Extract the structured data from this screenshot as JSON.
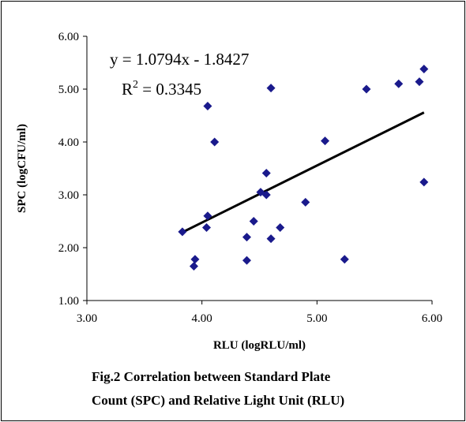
{
  "chart_data": {
    "type": "scatter",
    "xlabel": "RLU (logRLU/ml)",
    "ylabel": "SPC (logCFU/ml)",
    "xlim": [
      3.0,
      6.0
    ],
    "ylim": [
      1.0,
      6.0
    ],
    "x_ticks": [
      "3.00",
      "4.00",
      "5.00",
      "6.00"
    ],
    "y_ticks": [
      "1.00",
      "2.00",
      "3.00",
      "4.00",
      "5.00",
      "6.00"
    ],
    "grid": false,
    "marker": "diamond",
    "marker_color": "#1a1a8c",
    "trendline_color": "#000000",
    "series": [
      {
        "x": [
          3.83,
          3.93,
          3.94,
          4.04,
          4.05,
          4.05,
          4.11,
          4.39,
          4.39,
          4.45,
          4.51,
          4.56,
          4.56,
          4.6,
          4.6,
          4.68,
          4.9,
          5.07,
          5.24,
          5.43,
          5.71,
          5.89,
          5.93,
          5.93
        ],
        "y": [
          2.3,
          1.65,
          1.78,
          2.38,
          4.68,
          2.6,
          4.0,
          2.2,
          1.76,
          2.5,
          3.05,
          3.41,
          3.0,
          2.17,
          5.02,
          2.38,
          2.86,
          4.02,
          1.78,
          5.0,
          5.1,
          5.14,
          5.38,
          3.24
        ]
      }
    ],
    "trendline": {
      "slope": 1.0794,
      "intercept": -1.8427,
      "x_range": [
        3.83,
        5.93
      ]
    },
    "annotations": {
      "equation": "y = 1.0794x - 1.8427",
      "r2_base": "R",
      "r2_sup": "2",
      "r2_value": " = 0.3345"
    }
  },
  "caption": {
    "line1": "Fig.2 Correlation between Standard Plate",
    "line2": "Count (SPC) and Relative Light Unit (RLU)"
  }
}
